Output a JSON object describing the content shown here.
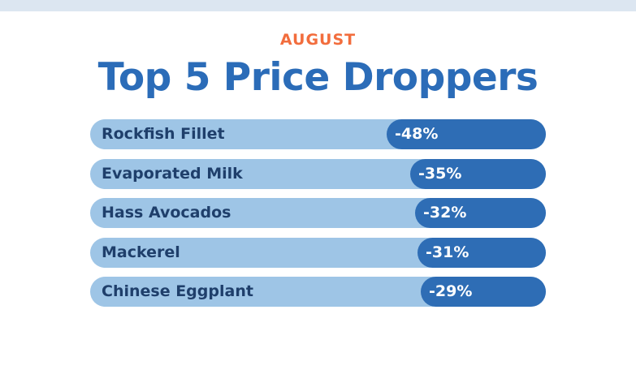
{
  "header": {
    "kicker": "AUGUST",
    "title": "Top 5 Price Droppers"
  },
  "colors": {
    "kicker": "#f26d3d",
    "title": "#2b6cb8",
    "track": "#9ec5e6",
    "fill": "#2e6db5",
    "label_text": "#1f3f6b",
    "value_text": "#ffffff",
    "top_band": "#dce6f1"
  },
  "chart_data": {
    "type": "bar",
    "orientation": "horizontal",
    "categories": [
      "Rockfish Fillet",
      "Evaporated Milk",
      "Hass Avocados",
      "Mackerel",
      "Chinese Eggplant"
    ],
    "values": [
      -48,
      -35,
      -32,
      -31,
      -29
    ],
    "value_labels": [
      "-48%",
      "-35%",
      "-32%",
      "-31%",
      "-29%"
    ],
    "unit": "%"
  }
}
